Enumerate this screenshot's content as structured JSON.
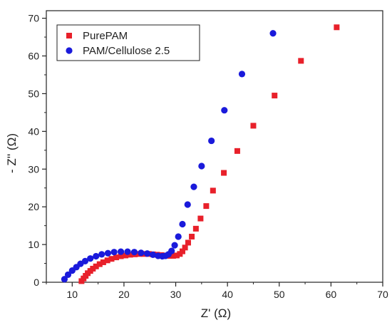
{
  "chart_data": {
    "type": "scatter",
    "xlabel": "Z' (Ω)",
    "ylabel": "- Z'' (Ω)",
    "xlim": [
      5,
      70
    ],
    "ylim": [
      0,
      72
    ],
    "xticks": [
      10,
      20,
      30,
      40,
      50,
      60,
      70
    ],
    "yticks": [
      0,
      10,
      20,
      30,
      40,
      50,
      60,
      70
    ],
    "grid": false,
    "legend_position": "top-left",
    "series": [
      {
        "name": "PurePAM",
        "marker": "square",
        "color": "#e8202a",
        "x": [
          11.8,
          12.2,
          12.6,
          13.0,
          13.5,
          14.0,
          14.6,
          15.3,
          16.0,
          16.8,
          17.6,
          18.5,
          19.4,
          20.3,
          21.2,
          22.1,
          23.0,
          23.9,
          24.8,
          25.6,
          26.4,
          27.2,
          28.0,
          28.8,
          29.5,
          30.2,
          30.8,
          31.3,
          31.8,
          32.4,
          33.1,
          33.9,
          34.8,
          35.9,
          37.2,
          39.3,
          41.9,
          45.0,
          49.1,
          54.2,
          61.1
        ],
        "y": [
          0.3,
          1.0,
          1.7,
          2.4,
          3.0,
          3.6,
          4.2,
          4.8,
          5.3,
          5.8,
          6.2,
          6.6,
          6.9,
          7.1,
          7.3,
          7.4,
          7.5,
          7.5,
          7.5,
          7.4,
          7.3,
          7.2,
          7.1,
          7.0,
          7.0,
          7.1,
          7.5,
          8.2,
          9.2,
          10.5,
          12.1,
          14.2,
          16.9,
          20.2,
          24.3,
          29.0,
          34.8,
          41.5,
          49.5,
          58.7,
          67.6
        ]
      },
      {
        "name": "PAM/Cellulose 2.5",
        "marker": "circle",
        "color": "#1a1adb",
        "x": [
          8.5,
          9.2,
          10.0,
          10.8,
          11.6,
          12.5,
          13.5,
          14.6,
          15.7,
          16.9,
          18.1,
          19.4,
          20.7,
          22.0,
          23.3,
          24.5,
          25.6,
          26.6,
          27.4,
          28.0,
          28.6,
          29.2,
          29.8,
          30.5,
          31.3,
          32.3,
          33.5,
          35.0,
          36.9,
          39.4,
          42.8,
          48.8
        ],
        "y": [
          0.8,
          2.0,
          3.1,
          4.0,
          4.9,
          5.6,
          6.3,
          6.9,
          7.4,
          7.7,
          8.0,
          8.1,
          8.1,
          8.0,
          7.8,
          7.6,
          7.3,
          7.0,
          6.9,
          7.0,
          7.4,
          8.3,
          9.8,
          12.1,
          15.4,
          20.6,
          25.3,
          30.8,
          37.5,
          45.6,
          55.2,
          66.0
        ]
      }
    ]
  }
}
